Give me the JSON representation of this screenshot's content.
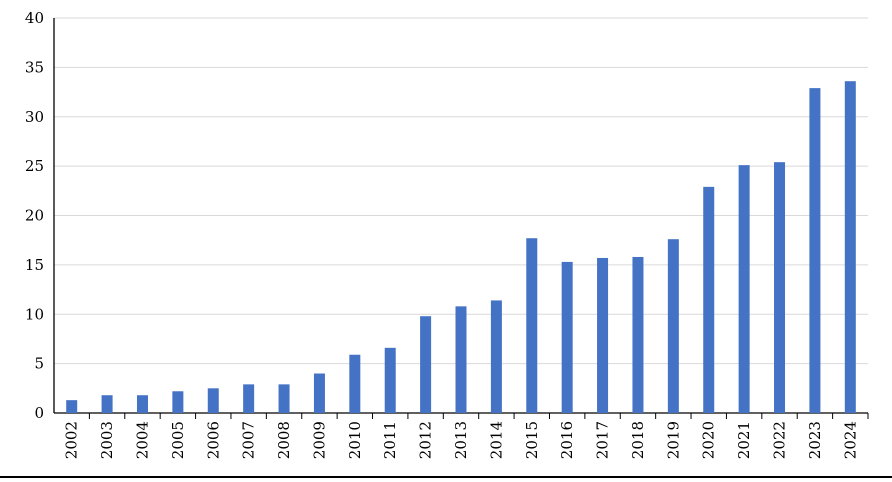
{
  "chart_data": {
    "type": "bar",
    "categories": [
      "2002",
      "2003",
      "2004",
      "2005",
      "2006",
      "2007",
      "2008",
      "2009",
      "2010",
      "2011",
      "2012",
      "2013",
      "2014",
      "2015",
      "2016",
      "2017",
      "2018",
      "2019",
      "2020",
      "2021",
      "2022",
      "2023",
      "2024"
    ],
    "values": [
      1.3,
      1.8,
      1.8,
      2.2,
      2.5,
      2.9,
      2.9,
      4.0,
      5.9,
      6.6,
      9.8,
      10.8,
      11.4,
      17.7,
      15.3,
      15.7,
      15.8,
      17.6,
      22.9,
      25.1,
      25.4,
      32.9,
      33.6
    ],
    "yticks": [
      "0",
      "5",
      "10",
      "15",
      "20",
      "25",
      "30",
      "35",
      "40"
    ],
    "ylim": [
      0,
      40
    ],
    "grid": true,
    "legend": "none",
    "bar_color": "#4472C4",
    "grid_color": "#D9D9D9"
  }
}
